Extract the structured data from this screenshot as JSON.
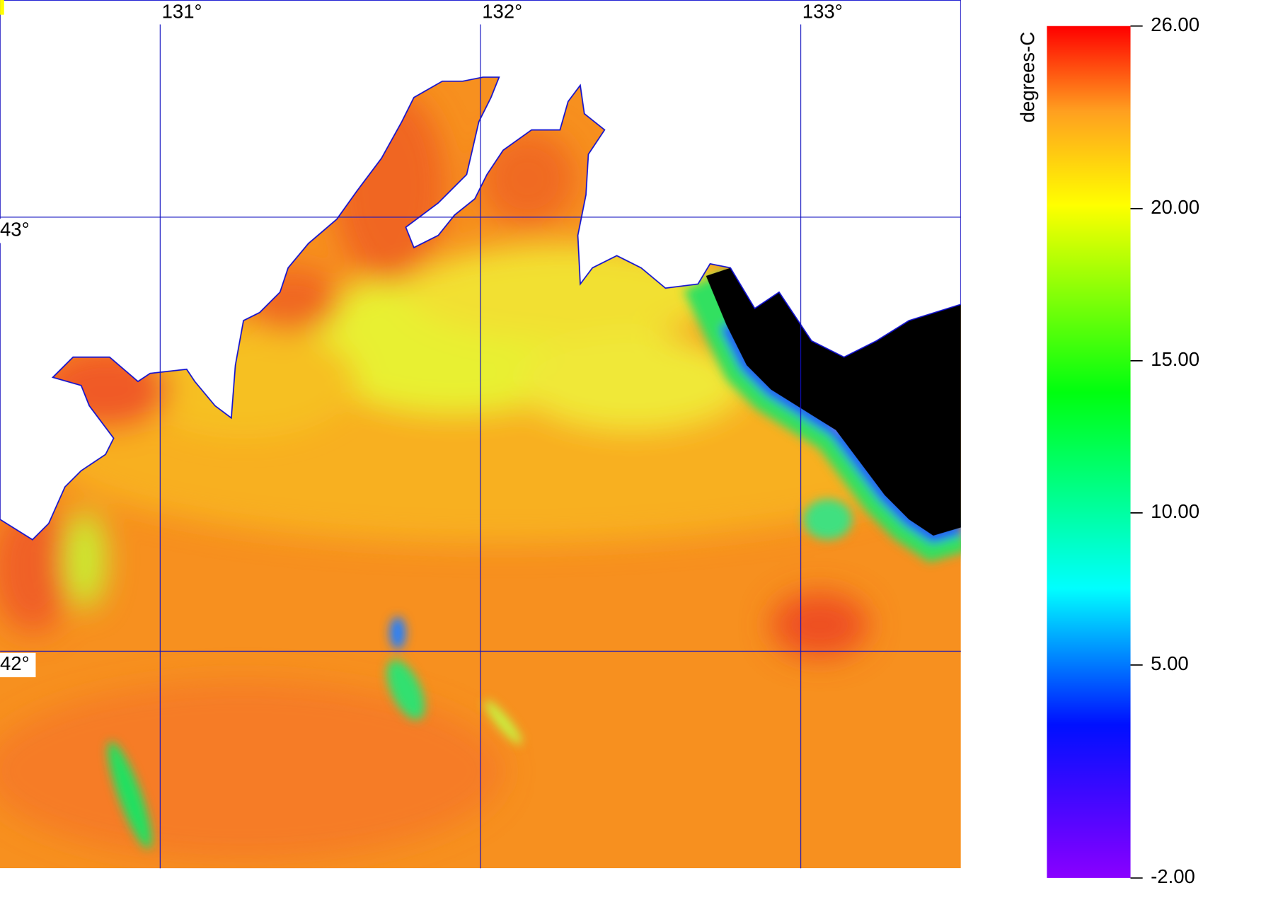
{
  "map": {
    "xlim": [
      130.5,
      133.5
    ],
    "ylim": [
      41.5,
      43.5
    ],
    "lon_ticks": [
      {
        "value": 131,
        "label": "131°"
      },
      {
        "value": 132,
        "label": "132°"
      },
      {
        "value": 133,
        "label": "133°"
      }
    ],
    "lat_ticks": [
      {
        "value": 43,
        "label": "43°"
      },
      {
        "value": 42,
        "label": "42°"
      }
    ]
  },
  "colorbar": {
    "label": "degrees-C",
    "lim": [
      -2,
      26
    ],
    "ticks": [
      {
        "value": 26,
        "label": "26.00"
      },
      {
        "value": 20,
        "label": "20.00"
      },
      {
        "value": 15,
        "label": "15.00"
      },
      {
        "value": 10,
        "label": "10.00"
      },
      {
        "value": 5,
        "label": "5.00"
      },
      {
        "value": -2,
        "label": "-2.00"
      }
    ]
  }
}
